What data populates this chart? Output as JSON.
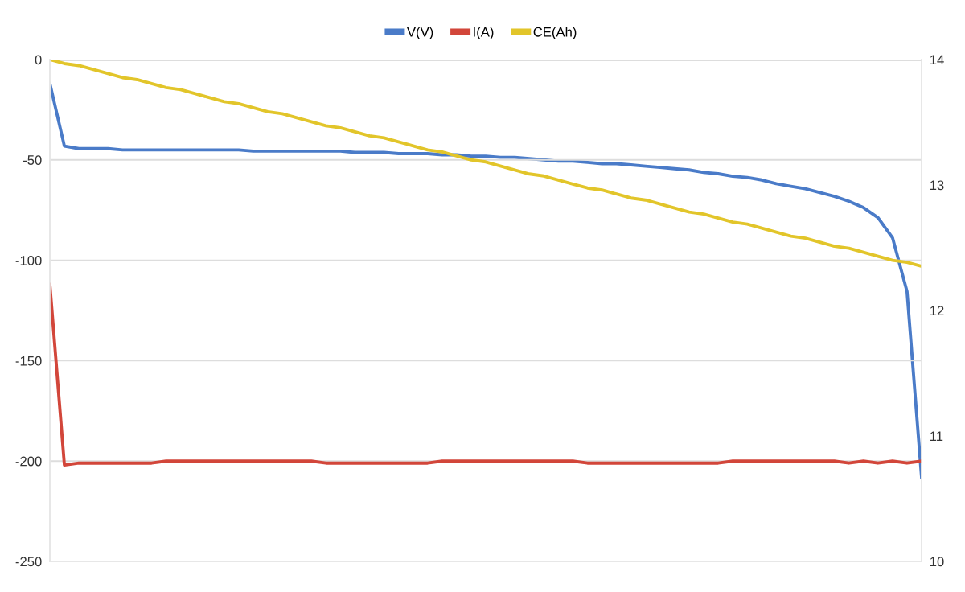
{
  "chart_data": {
    "type": "line",
    "categories": [
      null,
      null,
      null,
      null,
      null,
      null,
      null,
      null,
      null,
      null,
      null,
      null,
      null,
      null,
      null,
      null,
      null,
      null,
      null,
      null,
      null,
      null,
      null,
      null,
      null,
      null,
      null,
      null,
      null,
      null,
      null,
      null,
      null,
      null,
      null,
      null,
      null,
      null,
      null,
      null,
      null,
      null,
      null,
      null,
      null,
      null,
      null,
      null,
      null,
      null,
      null,
      null,
      null,
      null,
      null,
      null,
      null,
      null,
      null,
      null,
      null
    ],
    "series": [
      {
        "name": "V(V)",
        "color": "#4a7bc8",
        "axis": "y2",
        "values": [
          13.81,
          13.31,
          13.29,
          13.29,
          13.29,
          13.28,
          13.28,
          13.28,
          13.28,
          13.28,
          13.28,
          13.28,
          13.28,
          13.28,
          13.27,
          13.27,
          13.27,
          13.27,
          13.27,
          13.27,
          13.27,
          13.26,
          13.26,
          13.26,
          13.25,
          13.25,
          13.25,
          13.24,
          13.24,
          13.23,
          13.23,
          13.22,
          13.22,
          13.21,
          13.2,
          13.19,
          13.19,
          13.18,
          13.17,
          13.17,
          13.16,
          13.15,
          13.14,
          13.13,
          13.12,
          13.1,
          13.09,
          13.07,
          13.06,
          13.04,
          13.01,
          12.99,
          12.97,
          12.94,
          12.91,
          12.87,
          12.82,
          12.74,
          12.58,
          12.15,
          10.67
        ]
      },
      {
        "name": "I(A)",
        "color": "#d2463a",
        "values": [
          -112,
          -202,
          -201,
          -201,
          -201,
          -201,
          -201,
          -201,
          -200,
          -200,
          -200,
          -200,
          -200,
          -200,
          -200,
          -200,
          -200,
          -200,
          -200,
          -201,
          -201,
          -201,
          -201,
          -201,
          -201,
          -201,
          -201,
          -200,
          -200,
          -200,
          -200,
          -200,
          -200,
          -200,
          -200,
          -200,
          -200,
          -201,
          -201,
          -201,
          -201,
          -201,
          -201,
          -201,
          -201,
          -201,
          -201,
          -200,
          -200,
          -200,
          -200,
          -200,
          -200,
          -200,
          -200,
          -201,
          -200,
          -201,
          -200,
          -201,
          -200
        ]
      },
      {
        "name": "CE(Ah)",
        "color": "#e2c52a",
        "values": [
          0,
          -2,
          -3,
          -5,
          -7,
          -9,
          -10,
          -12,
          -14,
          -15,
          -17,
          -19,
          -21,
          -22,
          -24,
          -26,
          -27,
          -29,
          -31,
          -33,
          -34,
          -36,
          -38,
          -39,
          -41,
          -43,
          -45,
          -46,
          -48,
          -50,
          -51,
          -53,
          -55,
          -57,
          -58,
          -60,
          -62,
          -64,
          -65,
          -67,
          -69,
          -70,
          -72,
          -74,
          -76,
          -77,
          -79,
          -81,
          -82,
          -84,
          -86,
          -88,
          -89,
          -91,
          -93,
          -94,
          -96,
          -98,
          -100,
          -101,
          -103
        ]
      }
    ],
    "ylim": [
      -250,
      0
    ],
    "yticks": [
      -250,
      -200,
      -150,
      -100,
      -50,
      0
    ],
    "y2lim": [
      10,
      14
    ],
    "y2ticks": [
      10,
      11,
      12,
      13,
      14
    ],
    "ref_lines": [
      {
        "axis": "y",
        "value": 0,
        "color": "#777777"
      }
    ],
    "grid": "y",
    "legend": "top",
    "line_style": "solid",
    "marker": "none"
  }
}
